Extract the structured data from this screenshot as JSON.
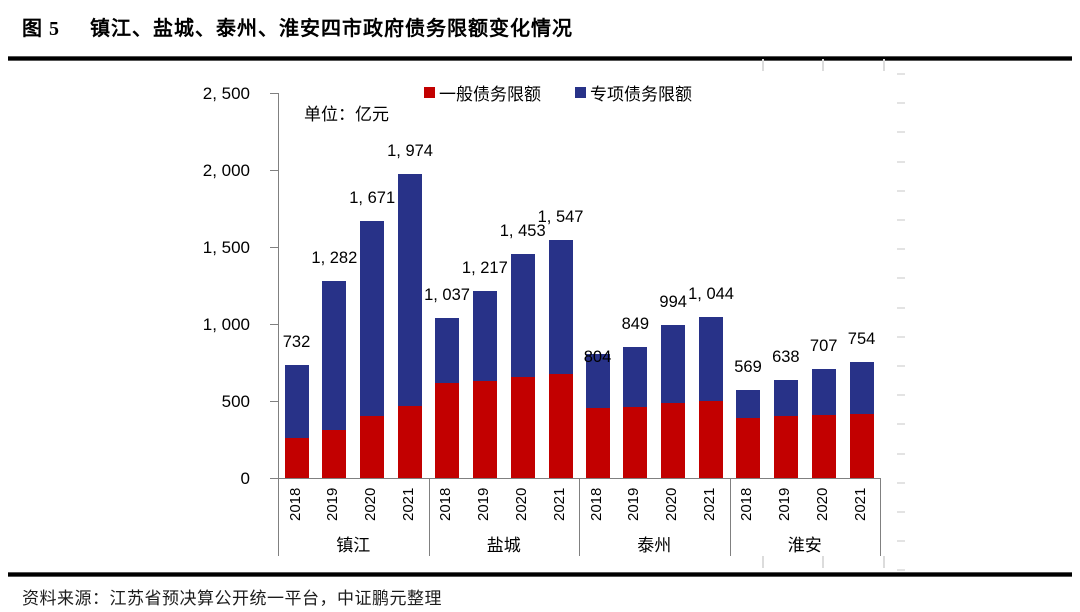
{
  "page": {
    "figure_label": "图 5",
    "title": "镇江、盐城、泰州、淮安四市政府债务限额变化情况",
    "source": "资料来源：江苏省预决算公开统一平台，中证鹏元整理"
  },
  "chart_data": {
    "type": "bar",
    "stacked": true,
    "unit_note": "单位：亿元",
    "ylim": [
      0,
      2500
    ],
    "y_tick_interval": 500,
    "y_tick_labels": [
      "0",
      "500",
      "1, 000",
      "1, 500",
      "2, 000",
      "2, 500"
    ],
    "grid": false,
    "legend_position": "top-center",
    "legend": [
      {
        "name": "一般债务限额",
        "color": "#c20000"
      },
      {
        "name": "专项债务限额",
        "color": "#283288"
      }
    ],
    "axis_color": "#808080",
    "note": "totals are the printed data labels; general (red) segment values estimated from bar geometry, special (blue) = total - general",
    "groups": [
      {
        "city": "镇江",
        "bars": [
          {
            "year": "2018",
            "total": 732,
            "label": "732",
            "general_est": 260
          },
          {
            "year": "2019",
            "total": 1282,
            "label": "1, 282",
            "general_est": 310
          },
          {
            "year": "2020",
            "total": 1671,
            "label": "1, 671",
            "general_est": 405
          },
          {
            "year": "2021",
            "total": 1974,
            "label": "1, 974",
            "general_est": 470
          }
        ]
      },
      {
        "city": "盐城",
        "bars": [
          {
            "year": "2018",
            "total": 1037,
            "label": "1, 037",
            "general_est": 615
          },
          {
            "year": "2019",
            "total": 1217,
            "label": "1, 217",
            "general_est": 630
          },
          {
            "year": "2020",
            "total": 1453,
            "label": "1, 453",
            "general_est": 655
          },
          {
            "year": "2021",
            "total": 1547,
            "label": "1, 547",
            "general_est": 675
          }
        ]
      },
      {
        "city": "泰州",
        "bars": [
          {
            "year": "2018",
            "total": 804,
            "label": "804",
            "general_est": 455,
            "label_dy": 26
          },
          {
            "year": "2019",
            "total": 849,
            "label": "849",
            "general_est": 460
          },
          {
            "year": "2020",
            "total": 994,
            "label": "994",
            "general_est": 490
          },
          {
            "year": "2021",
            "total": 1044,
            "label": "1, 044",
            "general_est": 500
          }
        ]
      },
      {
        "city": "淮安",
        "bars": [
          {
            "year": "2018",
            "total": 569,
            "label": "569",
            "general_est": 390
          },
          {
            "year": "2019",
            "total": 638,
            "label": "638",
            "general_est": 400
          },
          {
            "year": "2020",
            "total": 707,
            "label": "707",
            "general_est": 408
          },
          {
            "year": "2021",
            "total": 754,
            "label": "754",
            "general_est": 414
          }
        ]
      }
    ]
  }
}
